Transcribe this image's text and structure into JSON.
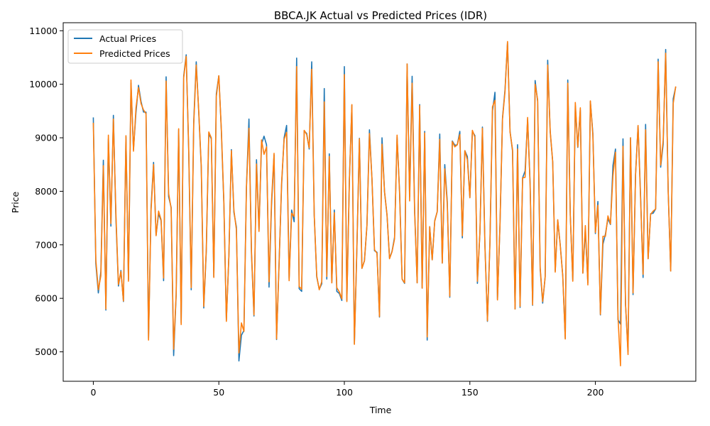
{
  "chart_data": {
    "type": "line",
    "title": "BBCA.JK Actual vs Predicted Prices (IDR)",
    "xlabel": "Time",
    "ylabel": "Price",
    "xlim": [
      -12,
      240
    ],
    "ylim": [
      4450,
      11150
    ],
    "x_ticks": [
      0,
      50,
      100,
      150,
      200
    ],
    "y_ticks": [
      5000,
      6000,
      7000,
      8000,
      9000,
      10000,
      11000
    ],
    "grid": false,
    "legend_position": "top-left",
    "series": [
      {
        "name": "Actual Prices",
        "color": "#1f77b4",
        "values": [
          9380,
          6650,
          6100,
          6500,
          8580,
          5780,
          8980,
          7350,
          9420,
          7500,
          6230,
          6520,
          5940,
          9020,
          6350,
          10020,
          8780,
          9480,
          9980,
          9680,
          9480,
          9480,
          5250,
          7700,
          8540,
          7180,
          7580,
          7450,
          6330,
          10140,
          7900,
          7700,
          4930,
          6060,
          9150,
          5540,
          10150,
          10550,
          8750,
          6160,
          9300,
          10420,
          9470,
          8450,
          5820,
          6880,
          9080,
          8980,
          6400,
          9820,
          10160,
          9130,
          7770,
          5590,
          6780,
          8780,
          7610,
          7330,
          4830,
          5310,
          5400,
          8090,
          9350,
          6840,
          5670,
          8590,
          7290,
          8880,
          9030,
          8870,
          6210,
          7750,
          8680,
          5230,
          6660,
          8110,
          9000,
          9230,
          6370,
          7650,
          7430,
          10490,
          6180,
          6130,
          9130,
          9080,
          8790,
          10420,
          7550,
          6400,
          6170,
          6270,
          9920,
          6360,
          8700,
          6290,
          7650,
          6130,
          6090,
          5960,
          10330,
          5960,
          8220,
          9610,
          5150,
          6940,
          8990,
          6560,
          6700,
          7360,
          9150,
          8230,
          6890,
          6860,
          5650,
          9000,
          7990,
          7550,
          6750,
          6880,
          7140,
          9020,
          8000,
          6360,
          6280,
          10380,
          7900,
          10150,
          7640,
          6290,
          9620,
          6190,
          9120,
          5220,
          7340,
          6720,
          7450,
          7620,
          9070,
          6660,
          8500,
          7810,
          6020,
          8940,
          8860,
          8870,
          9120,
          7130,
          8760,
          8650,
          7880,
          9120,
          9040,
          6280,
          7220,
          9200,
          7000,
          5570,
          7050,
          9500,
          9850,
          5980,
          7380,
          9370,
          9900,
          10780,
          9120,
          8750,
          5800,
          8870,
          5830,
          8250,
          8380,
          9340,
          8150,
          5870,
          10070,
          9680,
          6550,
          5910,
          6410,
          10450,
          9110,
          8550,
          6510,
          7460,
          7000,
          6420,
          5250,
          10080,
          7550,
          6330,
          9600,
          8820,
          9520,
          6470,
          7280,
          6290,
          9680,
          9080,
          7210,
          7810,
          5690,
          7010,
          7200,
          7490,
          7380,
          8480,
          8790,
          5600,
          5520,
          8980,
          5890,
          5010,
          9000,
          6070,
          8320,
          9220,
          7920,
          6390,
          9250,
          6740,
          7580,
          7590,
          7670,
          10470,
          8450,
          8880,
          10650,
          8000,
          6510,
          9730,
          9950
        ]
      },
      {
        "name": "Predicted Prices",
        "color": "#ff7f0e",
        "values": [
          9280,
          6720,
          6160,
          6420,
          8480,
          5800,
          9050,
          7400,
          9350,
          7580,
          6260,
          6500,
          5950,
          9040,
          6320,
          10080,
          8750,
          9560,
          9940,
          9640,
          9520,
          9450,
          5220,
          7640,
          8500,
          7170,
          7630,
          7470,
          6380,
          10060,
          7960,
          7680,
          5050,
          6080,
          9170,
          5510,
          10120,
          10520,
          8800,
          6200,
          9250,
          10360,
          9500,
          8480,
          5850,
          6910,
          9110,
          9000,
          6390,
          9770,
          10160,
          9160,
          7810,
          5570,
          6800,
          8760,
          7650,
          7280,
          4980,
          5540,
          5380,
          8070,
          9180,
          6880,
          5690,
          8510,
          7250,
          8960,
          8690,
          8830,
          6310,
          7830,
          8710,
          5240,
          6630,
          8160,
          8970,
          9100,
          6330,
          7590,
          7530,
          10330,
          6220,
          6170,
          9140,
          9060,
          8810,
          10280,
          7560,
          6420,
          6160,
          6310,
          9670,
          6410,
          8650,
          6290,
          7600,
          6200,
          6120,
          5990,
          10180,
          5940,
          8200,
          9620,
          5140,
          6970,
          8980,
          6560,
          6700,
          7360,
          9080,
          8240,
          6910,
          6840,
          5660,
          8880,
          8000,
          7560,
          6740,
          6870,
          7110,
          9050,
          7960,
          6360,
          6290,
          10380,
          7820,
          10020,
          7600,
          6290,
          9600,
          6190,
          9090,
          5280,
          7340,
          6720,
          7440,
          7620,
          8970,
          6660,
          8420,
          7760,
          6040,
          8930,
          8830,
          8870,
          9060,
          7170,
          8760,
          8590,
          7880,
          9140,
          9010,
          6320,
          7220,
          9180,
          6970,
          5580,
          7040,
          9580,
          9700,
          5970,
          7370,
          9350,
          9860,
          10800,
          9110,
          8780,
          5800,
          8790,
          5850,
          8250,
          8260,
          9380,
          8110,
          5880,
          10000,
          9710,
          6580,
          5940,
          6400,
          10360,
          9130,
          8550,
          6490,
          7470,
          6990,
          6420,
          5240,
          10020,
          7560,
          6320,
          9660,
          8830,
          9560,
          6470,
          7360,
          6250,
          9690,
          9040,
          7230,
          7740,
          5700,
          7160,
          7160,
          7540,
          7390,
          8290,
          8730,
          5660,
          4740,
          8840,
          5910,
          4950,
          9000,
          6100,
          8300,
          9230,
          7870,
          6450,
          9150,
          6740,
          7570,
          7630,
          7670,
          10420,
          8490,
          8950,
          10580,
          8000,
          6510,
          9640,
          9960
        ]
      }
    ]
  }
}
